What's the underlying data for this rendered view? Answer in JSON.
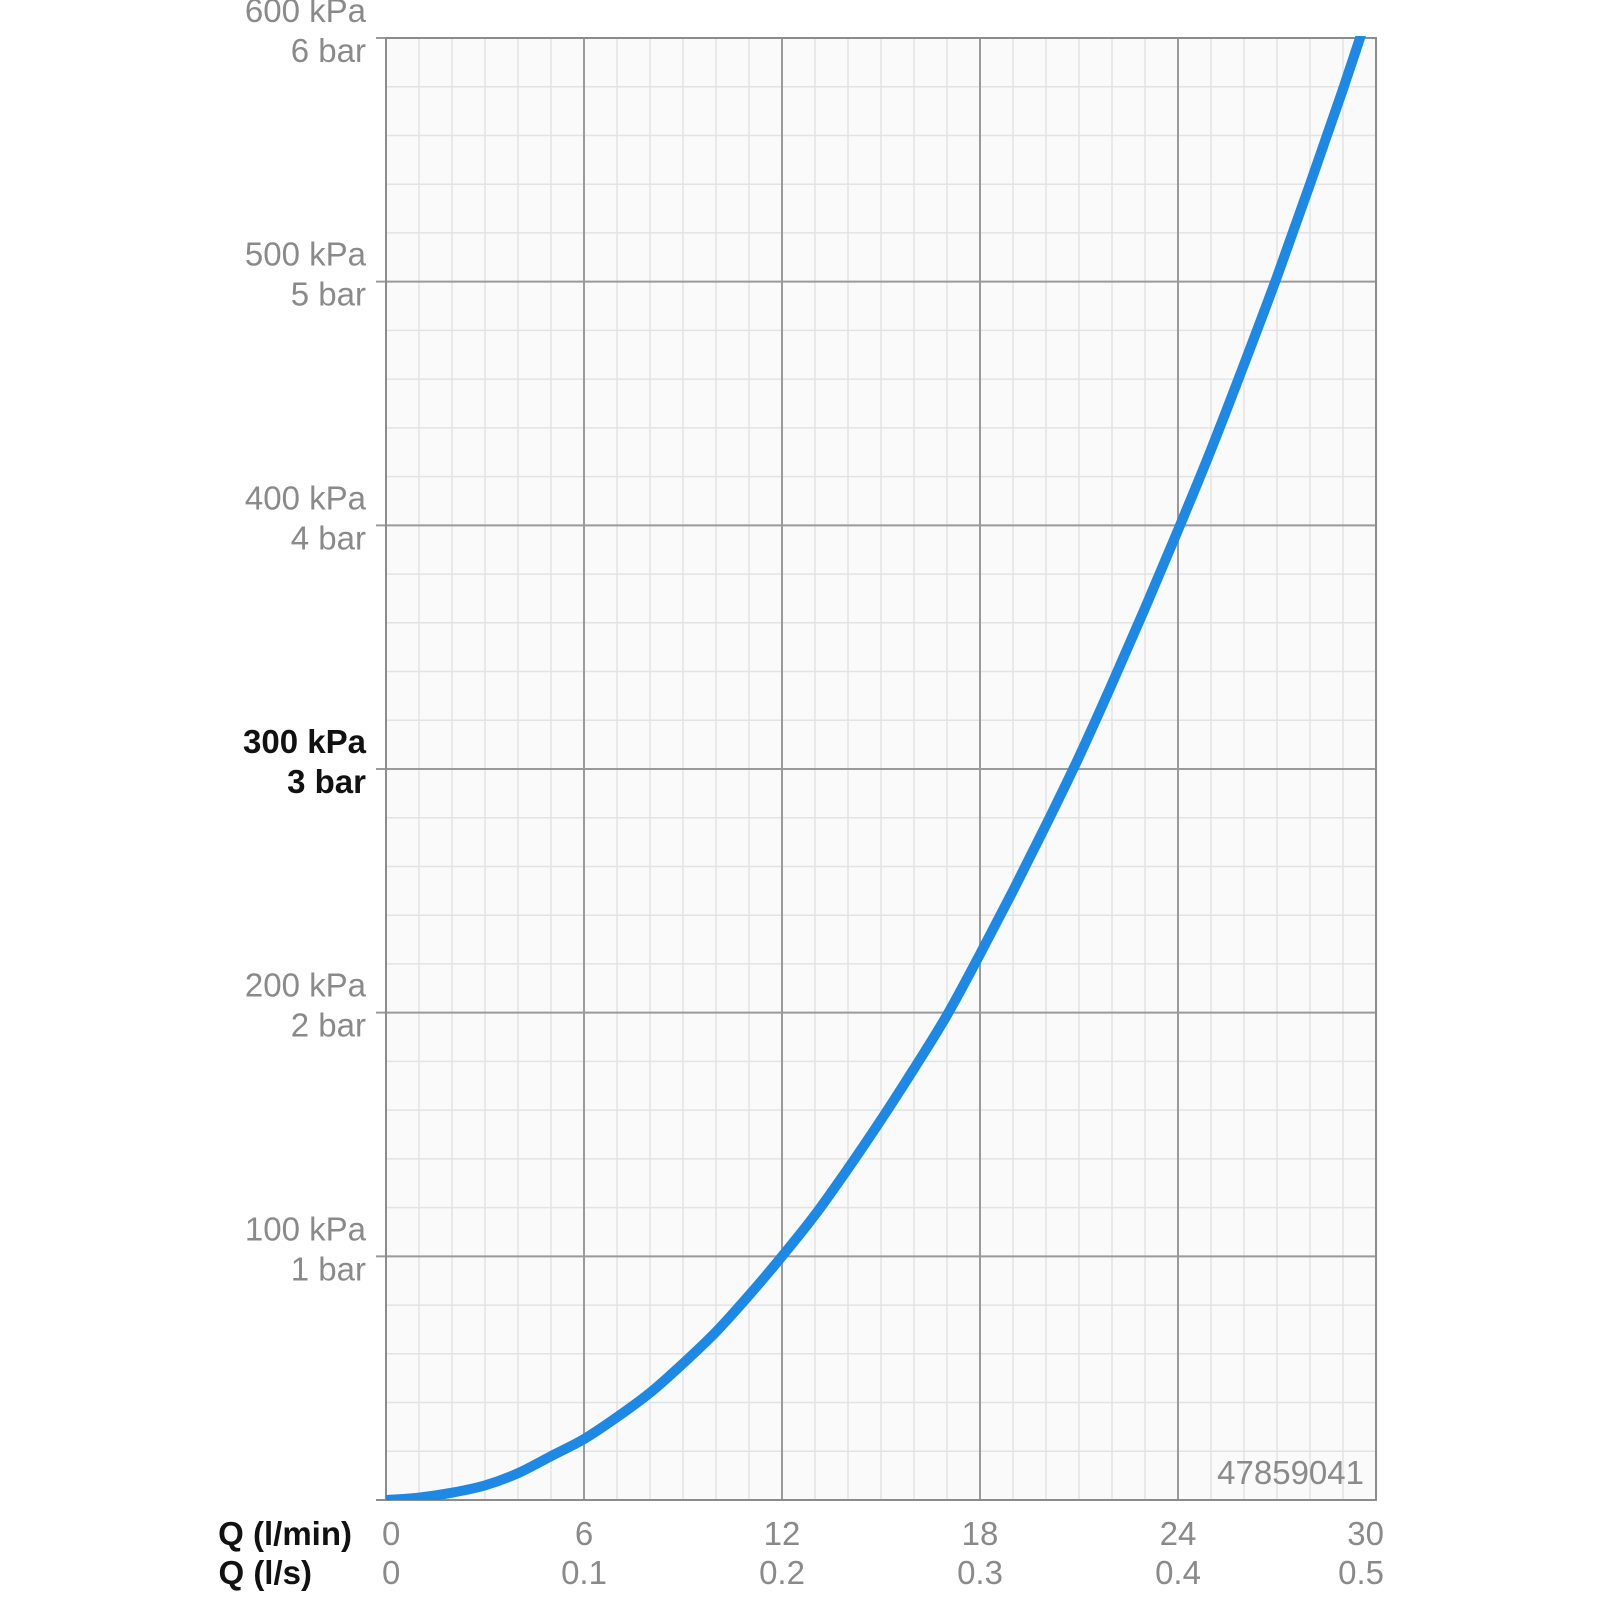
{
  "chart_data": {
    "type": "line",
    "x_axes": {
      "primary": {
        "label": "Q (l/min)",
        "ticks": [
          "0",
          "6",
          "12",
          "18",
          "24",
          "30"
        ],
        "range": [
          0,
          30
        ]
      },
      "secondary": {
        "label": "Q (l/s)",
        "ticks": [
          "0",
          "0.1",
          "0.2",
          "0.3",
          "0.4",
          "0.5"
        ]
      }
    },
    "y_axis": {
      "range": [
        0,
        600
      ],
      "ticks": [
        {
          "value": 100,
          "kpa": "100 kPa",
          "bar": "1 bar",
          "bold": false
        },
        {
          "value": 200,
          "kpa": "200 kPa",
          "bar": "2 bar",
          "bold": false
        },
        {
          "value": 300,
          "kpa": "300 kPa",
          "bar": "3 bar",
          "bold": true
        },
        {
          "value": 400,
          "kpa": "400 kPa",
          "bar": "4 bar",
          "bold": false
        },
        {
          "value": 500,
          "kpa": "500 kPa",
          "bar": "5 bar",
          "bold": false
        },
        {
          "value": 600,
          "kpa": "600 kPa",
          "bar": "6 bar",
          "bold": false
        }
      ]
    },
    "grid": true,
    "series": [
      {
        "color": "#1e88e5",
        "x": [
          0,
          1,
          2,
          3,
          4,
          5,
          6,
          7,
          8,
          9,
          10,
          11,
          12,
          13,
          14,
          15,
          16,
          17,
          18,
          19,
          20,
          21,
          22,
          23,
          24,
          25,
          26,
          27,
          28,
          29,
          30
        ],
        "y": [
          0,
          1,
          3,
          6,
          11,
          18,
          25,
          34,
          44,
          56,
          69,
          84,
          100,
          117,
          136,
          156,
          177,
          199,
          224,
          250,
          277,
          305,
          335,
          366,
          398,
          431,
          466,
          502,
          540,
          579,
          620
        ]
      }
    ]
  },
  "code_number": "47859041"
}
